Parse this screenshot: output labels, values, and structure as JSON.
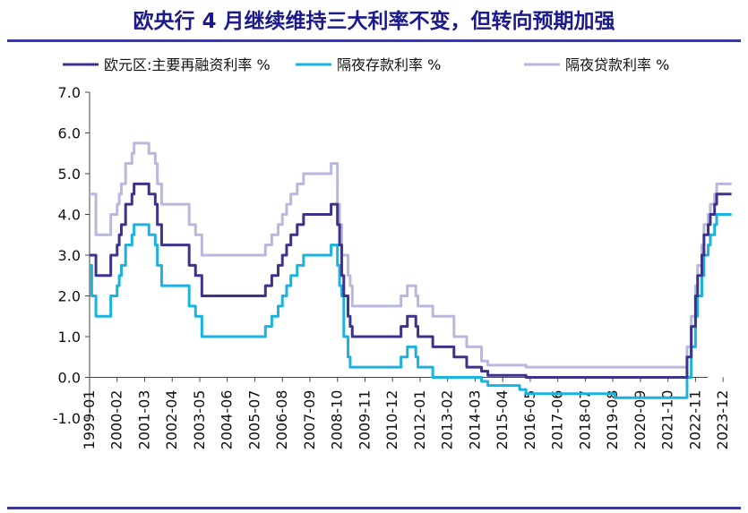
{
  "title": "欧央行 4 月继续维持三大利率不变，但转向预期加强",
  "colors": {
    "title": "#1a1a8c",
    "refi": "#3c338c",
    "deposit": "#1ab2de",
    "lending": "#b8b8dc",
    "negative_tick": "#cc0000",
    "rule": "#3a3a9a"
  },
  "chart_data": {
    "type": "line",
    "title": "欧央行 4 月继续维持三大利率不变，但转向预期加强",
    "xlabel": "",
    "ylabel": "",
    "ylim": [
      -1.0,
      7.0
    ],
    "yticks": [
      "7.0",
      "6.0",
      "5.0",
      "4.0",
      "3.0",
      "2.0",
      "1.0",
      "0.0",
      "-1.0"
    ],
    "xlim": [
      "1999-01",
      "2024-04"
    ],
    "xticks": [
      "1999-01",
      "2000-02",
      "2001-03",
      "2002-04",
      "2003-05",
      "2004-06",
      "2005-07",
      "2006-08",
      "2007-09",
      "2008-10",
      "2009-11",
      "2010-12",
      "2012-01",
      "2013-02",
      "2014-03",
      "2015-04",
      "2016-05",
      "2017-06",
      "2018-07",
      "2019-08",
      "2020-09",
      "2021-10",
      "2022-11",
      "2023-12"
    ],
    "grid": false,
    "legend_position": "top",
    "series": [
      {
        "name": "欧元区:主要再融资利率 %",
        "key": "refi",
        "points": [
          [
            "1999-01",
            3.0
          ],
          [
            "1999-04",
            2.5
          ],
          [
            "1999-11",
            3.0
          ],
          [
            "2000-02",
            3.25
          ],
          [
            "2000-03",
            3.5
          ],
          [
            "2000-04",
            3.75
          ],
          [
            "2000-06",
            4.25
          ],
          [
            "2000-09",
            4.5
          ],
          [
            "2000-10",
            4.75
          ],
          [
            "2001-05",
            4.5
          ],
          [
            "2001-08",
            4.25
          ],
          [
            "2001-09",
            3.75
          ],
          [
            "2001-11",
            3.25
          ],
          [
            "2002-12",
            2.75
          ],
          [
            "2003-03",
            2.5
          ],
          [
            "2003-06",
            2.0
          ],
          [
            "2005-12",
            2.25
          ],
          [
            "2006-03",
            2.5
          ],
          [
            "2006-06",
            2.75
          ],
          [
            "2006-08",
            3.0
          ],
          [
            "2006-10",
            3.25
          ],
          [
            "2006-12",
            3.5
          ],
          [
            "2007-03",
            3.75
          ],
          [
            "2007-06",
            4.0
          ],
          [
            "2008-07",
            4.25
          ],
          [
            "2008-10",
            3.75
          ],
          [
            "2008-11",
            3.25
          ],
          [
            "2008-12",
            2.5
          ],
          [
            "2009-01",
            2.0
          ],
          [
            "2009-03",
            1.5
          ],
          [
            "2009-04",
            1.25
          ],
          [
            "2009-05",
            1.0
          ],
          [
            "2011-04",
            1.25
          ],
          [
            "2011-07",
            1.5
          ],
          [
            "2011-11",
            1.25
          ],
          [
            "2011-12",
            1.0
          ],
          [
            "2012-07",
            0.75
          ],
          [
            "2013-05",
            0.5
          ],
          [
            "2013-11",
            0.25
          ],
          [
            "2014-06",
            0.15
          ],
          [
            "2014-09",
            0.05
          ],
          [
            "2016-03",
            0.0
          ],
          [
            "2022-07",
            0.5
          ],
          [
            "2022-09",
            1.25
          ],
          [
            "2022-11",
            2.0
          ],
          [
            "2022-12",
            2.5
          ],
          [
            "2023-02",
            3.0
          ],
          [
            "2023-03",
            3.5
          ],
          [
            "2023-05",
            3.75
          ],
          [
            "2023-06",
            4.0
          ],
          [
            "2023-08",
            4.25
          ],
          [
            "2023-09",
            4.5
          ],
          [
            "2024-04",
            4.5
          ]
        ]
      },
      {
        "name": "隔夜存款利率 %",
        "key": "deposit",
        "points": [
          [
            "1999-01",
            2.75
          ],
          [
            "1999-02",
            2.0
          ],
          [
            "1999-04",
            1.5
          ],
          [
            "1999-11",
            2.0
          ],
          [
            "2000-02",
            2.25
          ],
          [
            "2000-03",
            2.5
          ],
          [
            "2000-04",
            2.75
          ],
          [
            "2000-06",
            3.25
          ],
          [
            "2000-09",
            3.5
          ],
          [
            "2000-10",
            3.75
          ],
          [
            "2001-05",
            3.5
          ],
          [
            "2001-08",
            3.25
          ],
          [
            "2001-09",
            2.75
          ],
          [
            "2001-11",
            2.25
          ],
          [
            "2002-12",
            1.75
          ],
          [
            "2003-03",
            1.5
          ],
          [
            "2003-06",
            1.0
          ],
          [
            "2005-12",
            1.25
          ],
          [
            "2006-03",
            1.5
          ],
          [
            "2006-06",
            1.75
          ],
          [
            "2006-08",
            2.0
          ],
          [
            "2006-10",
            2.25
          ],
          [
            "2006-12",
            2.5
          ],
          [
            "2007-03",
            2.75
          ],
          [
            "2007-06",
            3.0
          ],
          [
            "2008-07",
            3.25
          ],
          [
            "2008-10",
            2.75
          ],
          [
            "2008-11",
            2.25
          ],
          [
            "2008-12",
            2.0
          ],
          [
            "2009-01",
            1.0
          ],
          [
            "2009-03",
            0.5
          ],
          [
            "2009-04",
            0.25
          ],
          [
            "2011-04",
            0.5
          ],
          [
            "2011-07",
            0.75
          ],
          [
            "2011-11",
            0.5
          ],
          [
            "2011-12",
            0.25
          ],
          [
            "2012-07",
            0.0
          ],
          [
            "2014-06",
            -0.1
          ],
          [
            "2014-09",
            -0.2
          ],
          [
            "2015-12",
            -0.3
          ],
          [
            "2016-03",
            -0.4
          ],
          [
            "2019-09",
            -0.5
          ],
          [
            "2022-07",
            0.0
          ],
          [
            "2022-09",
            0.75
          ],
          [
            "2022-11",
            1.5
          ],
          [
            "2022-12",
            2.0
          ],
          [
            "2023-02",
            2.5
          ],
          [
            "2023-03",
            3.0
          ],
          [
            "2023-05",
            3.25
          ],
          [
            "2023-06",
            3.5
          ],
          [
            "2023-08",
            3.75
          ],
          [
            "2023-09",
            4.0
          ],
          [
            "2024-04",
            4.0
          ]
        ]
      },
      {
        "name": "隔夜贷款利率 %",
        "key": "lending",
        "points": [
          [
            "1999-01",
            4.5
          ],
          [
            "1999-02",
            4.5
          ],
          [
            "1999-04",
            3.5
          ],
          [
            "1999-11",
            4.0
          ],
          [
            "2000-02",
            4.25
          ],
          [
            "2000-03",
            4.5
          ],
          [
            "2000-04",
            4.75
          ],
          [
            "2000-06",
            5.25
          ],
          [
            "2000-09",
            5.5
          ],
          [
            "2000-10",
            5.75
          ],
          [
            "2001-05",
            5.5
          ],
          [
            "2001-08",
            5.25
          ],
          [
            "2001-09",
            4.75
          ],
          [
            "2001-11",
            4.25
          ],
          [
            "2002-12",
            3.75
          ],
          [
            "2003-03",
            3.5
          ],
          [
            "2003-06",
            3.0
          ],
          [
            "2005-12",
            3.25
          ],
          [
            "2006-03",
            3.5
          ],
          [
            "2006-06",
            3.75
          ],
          [
            "2006-08",
            4.0
          ],
          [
            "2006-10",
            4.25
          ],
          [
            "2006-12",
            4.5
          ],
          [
            "2007-03",
            4.75
          ],
          [
            "2007-06",
            5.0
          ],
          [
            "2008-07",
            5.25
          ],
          [
            "2008-10",
            4.25
          ],
          [
            "2008-11",
            3.75
          ],
          [
            "2008-12",
            3.0
          ],
          [
            "2009-01",
            3.0
          ],
          [
            "2009-03",
            2.5
          ],
          [
            "2009-04",
            2.25
          ],
          [
            "2009-05",
            1.75
          ],
          [
            "2011-04",
            2.0
          ],
          [
            "2011-07",
            2.25
          ],
          [
            "2011-11",
            2.0
          ],
          [
            "2011-12",
            1.75
          ],
          [
            "2012-07",
            1.5
          ],
          [
            "2013-05",
            1.0
          ],
          [
            "2013-11",
            0.75
          ],
          [
            "2014-06",
            0.4
          ],
          [
            "2014-09",
            0.3
          ],
          [
            "2016-03",
            0.25
          ],
          [
            "2022-07",
            0.75
          ],
          [
            "2022-09",
            1.5
          ],
          [
            "2022-11",
            2.25
          ],
          [
            "2022-12",
            2.75
          ],
          [
            "2023-02",
            3.25
          ],
          [
            "2023-03",
            3.75
          ],
          [
            "2023-05",
            4.0
          ],
          [
            "2023-06",
            4.25
          ],
          [
            "2023-08",
            4.5
          ],
          [
            "2023-09",
            4.75
          ],
          [
            "2024-04",
            4.75
          ]
        ]
      }
    ]
  }
}
